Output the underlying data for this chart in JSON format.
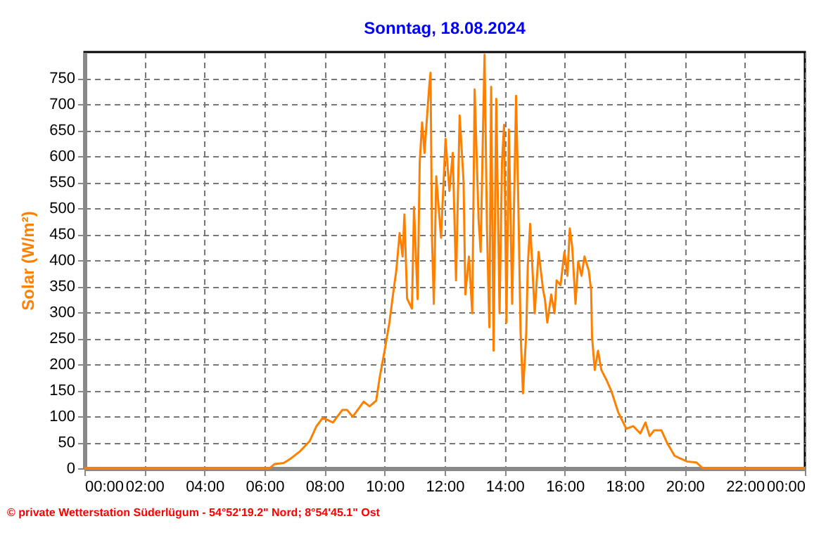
{
  "chart_data": {
    "type": "line",
    "title": "Sonntag, 18.08.2024",
    "ylabel": "Solar (W/m²)",
    "annotations": [
      "© private Wetterstation Süderlügum - 54°52'19.2\" Nord; 8°54'45.1\" Ost"
    ],
    "xlim": [
      0,
      24
    ],
    "xticks": [
      {
        "value": 0,
        "label": "00:00"
      },
      {
        "value": 2,
        "label": "02:00"
      },
      {
        "value": 4,
        "label": "04:00"
      },
      {
        "value": 6,
        "label": "06:00"
      },
      {
        "value": 8,
        "label": "08:00"
      },
      {
        "value": 10,
        "label": "10:00"
      },
      {
        "value": 12,
        "label": "12:00"
      },
      {
        "value": 14,
        "label": "14:00"
      },
      {
        "value": 16,
        "label": "16:00"
      },
      {
        "value": 18,
        "label": "18:00"
      },
      {
        "value": 20,
        "label": "20:00"
      },
      {
        "value": 22,
        "label": "22:00"
      },
      {
        "value": 24,
        "label": "00:00"
      }
    ],
    "ylim": [
      0,
      800
    ],
    "yticks": [
      0,
      50,
      100,
      150,
      200,
      250,
      300,
      350,
      400,
      450,
      500,
      550,
      600,
      650,
      700,
      750
    ],
    "grid": true,
    "line_style": "solid",
    "marker": "none",
    "series": [
      {
        "color": "#ff8000",
        "x": [
          0,
          6.17,
          6.33,
          6.64,
          6.88,
          7.19,
          7.5,
          7.73,
          7.94,
          8.28,
          8.59,
          8.75,
          8.94,
          9.3,
          9.5,
          9.72,
          9.84,
          10.0,
          10.16,
          10.28,
          10.39,
          10.5,
          10.6,
          10.66,
          10.75,
          10.91,
          10.98,
          11.1,
          11.17,
          11.25,
          11.33,
          11.4,
          11.49,
          11.53,
          11.58,
          11.64,
          11.72,
          11.88,
          11.95,
          12.03,
          12.16,
          12.27,
          12.38,
          12.5,
          12.63,
          12.69,
          12.81,
          12.92,
          13.0,
          13.13,
          13.2,
          13.28,
          13.33,
          13.41,
          13.49,
          13.55,
          13.63,
          13.72,
          13.83,
          13.91,
          13.98,
          14.06,
          14.14,
          14.25,
          14.38,
          14.45,
          14.53,
          14.61,
          14.72,
          14.77,
          14.85,
          14.92,
          15.0,
          15.13,
          15.28,
          15.34,
          15.42,
          15.55,
          15.66,
          15.73,
          15.86,
          15.99,
          16.09,
          16.17,
          16.25,
          16.36,
          16.45,
          16.56,
          16.66,
          16.8,
          16.88,
          16.91,
          17.0,
          17.11,
          17.22,
          17.38,
          17.55,
          17.78,
          18.05,
          18.28,
          18.52,
          18.69,
          18.83,
          18.98,
          19.22,
          19.41,
          19.66,
          19.84,
          20.08,
          20.39,
          20.6,
          24
        ],
        "values": [
          0,
          0,
          8,
          10,
          19,
          33,
          52,
          81,
          97,
          88,
          112,
          112,
          99,
          128,
          119,
          130,
          176,
          226,
          280,
          334,
          380,
          452,
          407,
          488,
          326,
          307,
          502,
          325,
          588,
          665,
          606,
          665,
          737,
          760,
          438,
          316,
          561,
          443,
          533,
          633,
          533,
          606,
          361,
          678,
          552,
          334,
          407,
          298,
          728,
          479,
          416,
          656,
          795,
          461,
          271,
          733,
          226,
          710,
          298,
          588,
          660,
          280,
          651,
          316,
          716,
          524,
          262,
          144,
          262,
          389,
          470,
          389,
          298,
          416,
          343,
          325,
          280,
          334,
          298,
          361,
          352,
          416,
          370,
          461,
          425,
          316,
          398,
          370,
          407,
          380,
          343,
          253,
          189,
          226,
          189,
          171,
          149,
          108,
          76,
          81,
          67,
          88,
          62,
          73,
          73,
          49,
          24,
          19,
          13,
          11,
          0,
          0
        ]
      }
    ]
  }
}
